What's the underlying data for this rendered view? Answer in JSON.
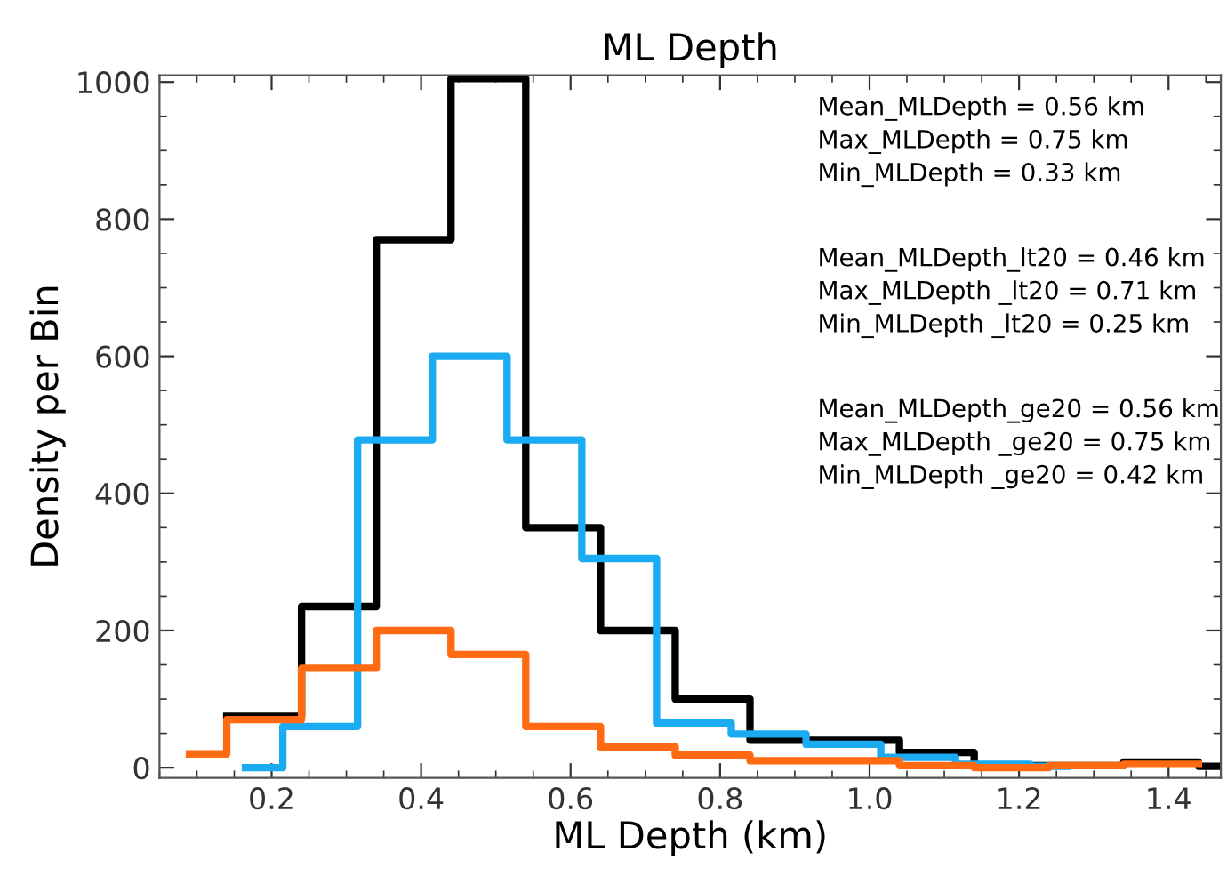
{
  "chart_data": {
    "type": "step",
    "title": "ML Depth",
    "xlabel": "ML Depth (km)",
    "ylabel": "Density per Bin",
    "xlim": [
      0.05,
      1.47
    ],
    "xticks": [
      0.2,
      0.4,
      0.6,
      0.8,
      {
        "value": 1.0,
        "label": "1.0"
      },
      1.2,
      1.4
    ],
    "ylim": [
      -15,
      1010
    ],
    "yticks": [
      0,
      200,
      400,
      600,
      800,
      1000
    ],
    "grid": false,
    "series": [
      {
        "color": "#000000",
        "x": [
          0.14,
          0.24,
          0.34,
          0.44,
          0.54,
          0.64,
          0.74,
          0.84,
          0.94,
          1.04,
          1.14,
          1.24,
          1.34,
          1.44,
          1.47
        ],
        "values": [
          75,
          235,
          770,
          1005,
          350,
          200,
          100,
          40,
          40,
          22,
          3,
          3,
          8,
          2,
          2
        ]
      },
      {
        "color": "#1aabf2",
        "x": [
          0.165,
          0.215,
          0.315,
          0.415,
          0.515,
          0.615,
          0.715,
          0.815,
          0.915,
          1.015,
          1.115,
          1.215,
          1.265
        ],
        "values": [
          0,
          60,
          478,
          600,
          478,
          305,
          65,
          49,
          34,
          15,
          5,
          2,
          2
        ]
      },
      {
        "color": "#ff6a13",
        "x": [
          0.09,
          0.14,
          0.24,
          0.34,
          0.44,
          0.54,
          0.64,
          0.74,
          0.84,
          0.94,
          1.04,
          1.14,
          1.24,
          1.34,
          1.44
        ],
        "values": [
          20,
          70,
          145,
          200,
          165,
          60,
          30,
          18,
          10,
          10,
          3,
          0,
          3,
          5,
          5
        ]
      }
    ],
    "annotations": [
      "Mean_MLDepth = 0.56 km\nMax_MLDepth = 0.75 km\nMin_MLDepth = 0.33 km",
      "Mean_MLDepth_lt20 = 0.46 km\nMax_MLDepth _lt20 = 0.71 km\nMin_MLDepth _lt20 = 0.25 km",
      "Mean_MLDepth_ge20 = 0.56 km\nMax_MLDepth _ge20 = 0.75 km\nMin_MLDepth _ge20 = 0.42 km"
    ]
  }
}
